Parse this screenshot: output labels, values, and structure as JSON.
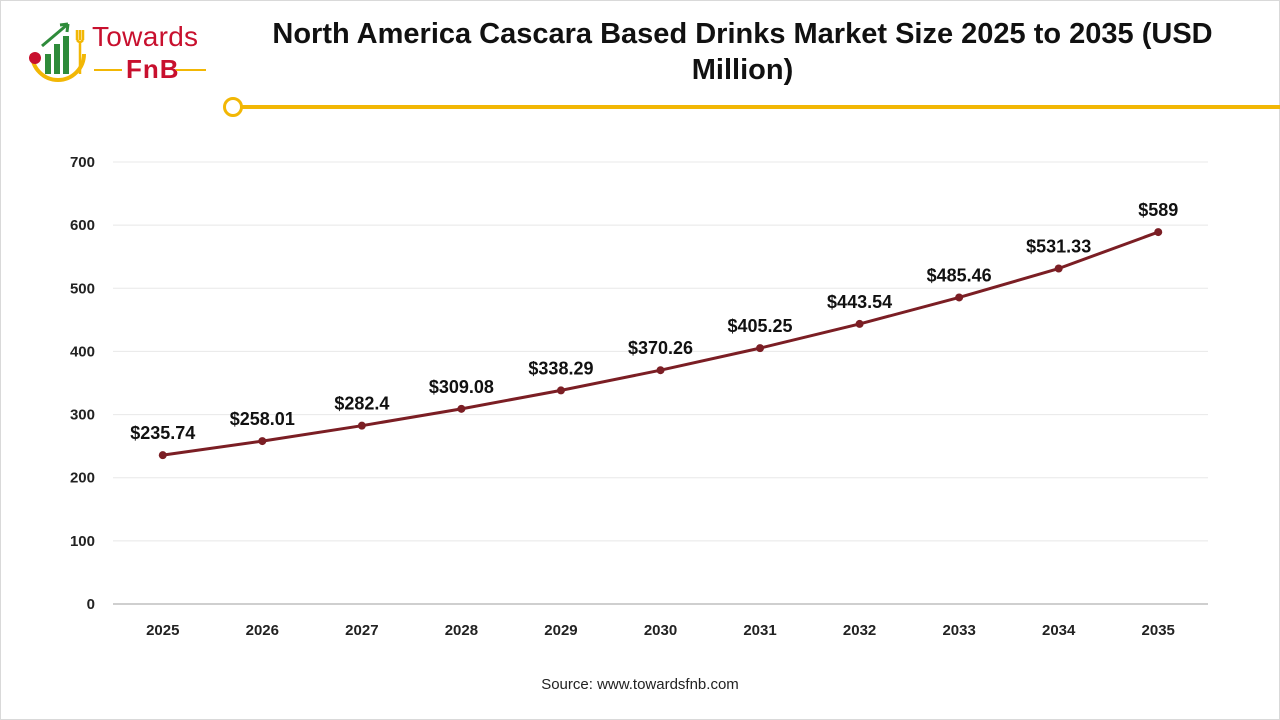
{
  "logo": {
    "text_top": "Towards",
    "text_bottom": "FnB"
  },
  "colors": {
    "line": "#7b1e24",
    "accent": "#f2b705",
    "brand": "#c8102e",
    "grid": "#e8e8e8"
  },
  "chart_data": {
    "type": "line",
    "title": "North America Cascara Based Drinks Market Size 2025 to 2035 (USD Million)",
    "categories": [
      "2025",
      "2026",
      "2027",
      "2028",
      "2029",
      "2030",
      "2031",
      "2032",
      "2033",
      "2034",
      "2035"
    ],
    "values": [
      235.74,
      258.01,
      282.4,
      309.08,
      338.29,
      370.26,
      405.25,
      443.54,
      485.46,
      531.33,
      589
    ],
    "data_labels": [
      "$235.74",
      "$258.01",
      "$282.4",
      "$309.08",
      "$338.29",
      "$370.26",
      "$405.25",
      "$443.54",
      "$485.46",
      "$531.33",
      "$589"
    ],
    "yticks": [
      "0",
      "100",
      "200",
      "300",
      "400",
      "500",
      "600",
      "700"
    ],
    "ylim": [
      0,
      700
    ],
    "grid": true,
    "legend": "none"
  },
  "source": "Source: www.towardsfnb.com"
}
